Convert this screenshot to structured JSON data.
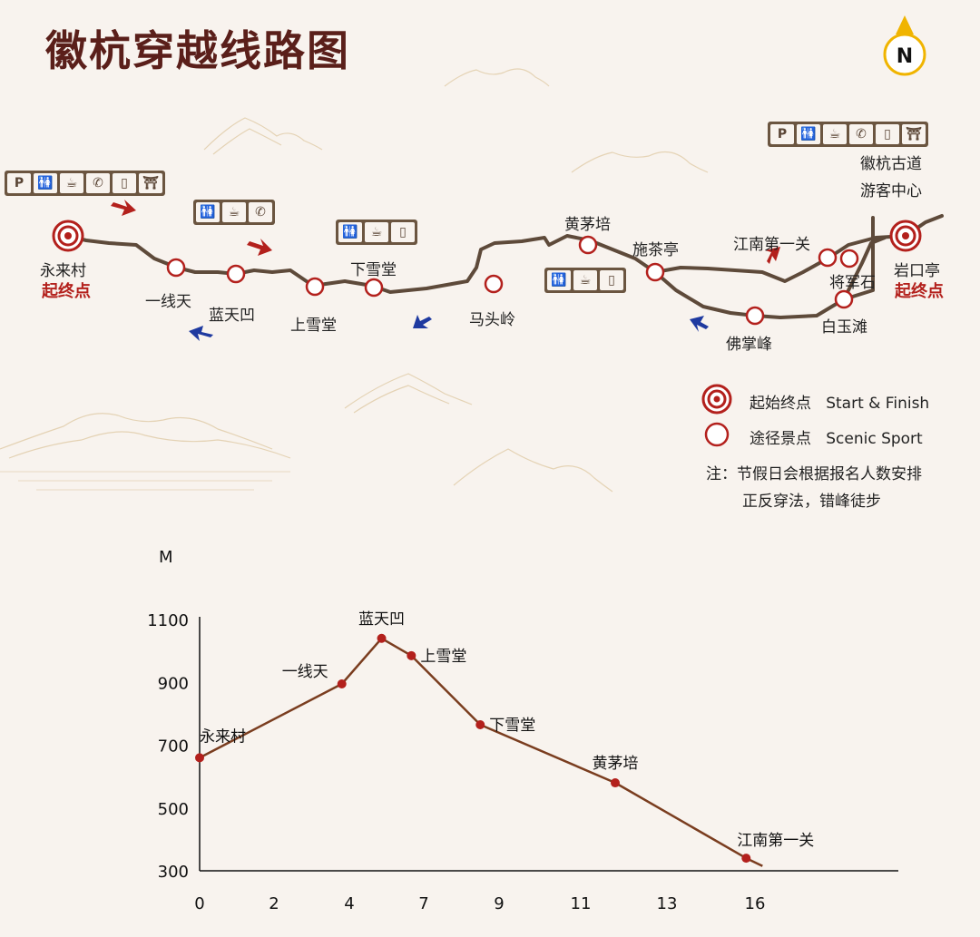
{
  "title": "徽杭穿越线路图",
  "compass": "N",
  "places": {
    "yonglai": "永来村",
    "yixiantian": "一线天",
    "lantianao": "蓝天凹",
    "shangxuetang": "上雪堂",
    "xiaxuetang": "下雪堂",
    "matouling": "马头岭",
    "huangmaopei": "黄茅培",
    "shichating": "施茶亭",
    "fozhangfeng": "佛掌峰",
    "jiangnan": "江南第一关",
    "jiangjunshi": "将军石",
    "baiyutan": "白玉滩",
    "yankouting": "岩口亭",
    "visitor1": "徽杭古道",
    "visitor2": "游客中心"
  },
  "start_label": "起终点",
  "end_label": "起终点",
  "legend": {
    "start_cn": "起始终点",
    "start_en": "Start & Finish",
    "scenic_cn": "途径景点",
    "scenic_en": "Scenic Sport"
  },
  "note_line1": "注：节假日会根据报名人数安排",
  "note_line2": "正反穿法，错峰徒步",
  "colors": {
    "route": "#5e4a3a",
    "accent": "#b3201c",
    "arrow_red": "#b3201c",
    "arrow_blue": "#1f3aa0",
    "icon_bar": "#6b5540"
  },
  "icons": [
    "P",
    "toilet-icon",
    "tea-icon",
    "phone-icon",
    "document-icon",
    "shop-icon"
  ],
  "chart_data": {
    "type": "line",
    "ylabel": "M",
    "x_ticks": [
      0,
      2,
      4,
      7,
      9,
      11,
      13,
      16
    ],
    "y_ticks": [
      300,
      500,
      700,
      900,
      1100
    ],
    "ylim": [
      300,
      1100
    ],
    "points": [
      {
        "name": "永来村",
        "x": 0,
        "y": 660
      },
      {
        "name": "一线天",
        "x": 3.8,
        "y": 895
      },
      {
        "name": "蓝天凹",
        "x": 5.3,
        "y": 1040
      },
      {
        "name": "上雪堂",
        "x": 6.5,
        "y": 985
      },
      {
        "name": "下雪堂",
        "x": 8.5,
        "y": 765
      },
      {
        "name": "黄茅培",
        "x": 11.8,
        "y": 580
      },
      {
        "name": "江南第一关",
        "x": 15.7,
        "y": 340
      }
    ]
  }
}
